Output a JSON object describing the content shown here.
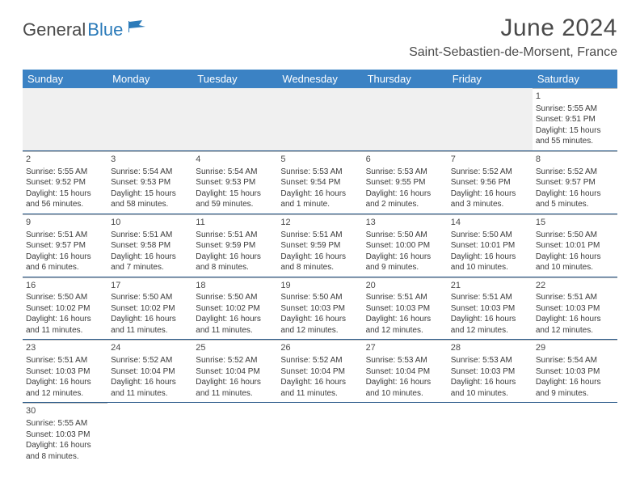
{
  "branding": {
    "textDark": "General",
    "textBlue": "Blue"
  },
  "header": {
    "monthTitle": "June 2024",
    "location": "Saint-Sebastien-de-Morsent, France"
  },
  "dayNames": [
    "Sunday",
    "Monday",
    "Tuesday",
    "Wednesday",
    "Thursday",
    "Friday",
    "Saturday"
  ],
  "colors": {
    "headerBg": "#3b82c4",
    "rowBorder": "#2a5a8a",
    "cellBorder": "#c0c0c0",
    "textDark": "#4a4a4a",
    "brandBlue": "#2a7ab9",
    "bg": "#ffffff",
    "firstRowBg": "#f0f0f0"
  },
  "weeks": [
    [
      null,
      null,
      null,
      null,
      null,
      null,
      {
        "d": "1",
        "sr": "5:55 AM",
        "ss": "9:51 PM",
        "dl": "15 hours and 55 minutes."
      }
    ],
    [
      {
        "d": "2",
        "sr": "5:55 AM",
        "ss": "9:52 PM",
        "dl": "15 hours and 56 minutes."
      },
      {
        "d": "3",
        "sr": "5:54 AM",
        "ss": "9:53 PM",
        "dl": "15 hours and 58 minutes."
      },
      {
        "d": "4",
        "sr": "5:54 AM",
        "ss": "9:53 PM",
        "dl": "15 hours and 59 minutes."
      },
      {
        "d": "5",
        "sr": "5:53 AM",
        "ss": "9:54 PM",
        "dl": "16 hours and 1 minute."
      },
      {
        "d": "6",
        "sr": "5:53 AM",
        "ss": "9:55 PM",
        "dl": "16 hours and 2 minutes."
      },
      {
        "d": "7",
        "sr": "5:52 AM",
        "ss": "9:56 PM",
        "dl": "16 hours and 3 minutes."
      },
      {
        "d": "8",
        "sr": "5:52 AM",
        "ss": "9:57 PM",
        "dl": "16 hours and 5 minutes."
      }
    ],
    [
      {
        "d": "9",
        "sr": "5:51 AM",
        "ss": "9:57 PM",
        "dl": "16 hours and 6 minutes."
      },
      {
        "d": "10",
        "sr": "5:51 AM",
        "ss": "9:58 PM",
        "dl": "16 hours and 7 minutes."
      },
      {
        "d": "11",
        "sr": "5:51 AM",
        "ss": "9:59 PM",
        "dl": "16 hours and 8 minutes."
      },
      {
        "d": "12",
        "sr": "5:51 AM",
        "ss": "9:59 PM",
        "dl": "16 hours and 8 minutes."
      },
      {
        "d": "13",
        "sr": "5:50 AM",
        "ss": "10:00 PM",
        "dl": "16 hours and 9 minutes."
      },
      {
        "d": "14",
        "sr": "5:50 AM",
        "ss": "10:01 PM",
        "dl": "16 hours and 10 minutes."
      },
      {
        "d": "15",
        "sr": "5:50 AM",
        "ss": "10:01 PM",
        "dl": "16 hours and 10 minutes."
      }
    ],
    [
      {
        "d": "16",
        "sr": "5:50 AM",
        "ss": "10:02 PM",
        "dl": "16 hours and 11 minutes."
      },
      {
        "d": "17",
        "sr": "5:50 AM",
        "ss": "10:02 PM",
        "dl": "16 hours and 11 minutes."
      },
      {
        "d": "18",
        "sr": "5:50 AM",
        "ss": "10:02 PM",
        "dl": "16 hours and 11 minutes."
      },
      {
        "d": "19",
        "sr": "5:50 AM",
        "ss": "10:03 PM",
        "dl": "16 hours and 12 minutes."
      },
      {
        "d": "20",
        "sr": "5:51 AM",
        "ss": "10:03 PM",
        "dl": "16 hours and 12 minutes."
      },
      {
        "d": "21",
        "sr": "5:51 AM",
        "ss": "10:03 PM",
        "dl": "16 hours and 12 minutes."
      },
      {
        "d": "22",
        "sr": "5:51 AM",
        "ss": "10:03 PM",
        "dl": "16 hours and 12 minutes."
      }
    ],
    [
      {
        "d": "23",
        "sr": "5:51 AM",
        "ss": "10:03 PM",
        "dl": "16 hours and 12 minutes."
      },
      {
        "d": "24",
        "sr": "5:52 AM",
        "ss": "10:04 PM",
        "dl": "16 hours and 11 minutes."
      },
      {
        "d": "25",
        "sr": "5:52 AM",
        "ss": "10:04 PM",
        "dl": "16 hours and 11 minutes."
      },
      {
        "d": "26",
        "sr": "5:52 AM",
        "ss": "10:04 PM",
        "dl": "16 hours and 11 minutes."
      },
      {
        "d": "27",
        "sr": "5:53 AM",
        "ss": "10:04 PM",
        "dl": "16 hours and 10 minutes."
      },
      {
        "d": "28",
        "sr": "5:53 AM",
        "ss": "10:03 PM",
        "dl": "16 hours and 10 minutes."
      },
      {
        "d": "29",
        "sr": "5:54 AM",
        "ss": "10:03 PM",
        "dl": "16 hours and 9 minutes."
      }
    ],
    [
      {
        "d": "30",
        "sr": "5:55 AM",
        "ss": "10:03 PM",
        "dl": "16 hours and 8 minutes."
      },
      null,
      null,
      null,
      null,
      null,
      null
    ]
  ],
  "labels": {
    "sunrise": "Sunrise:",
    "sunset": "Sunset:",
    "daylight": "Daylight:"
  }
}
